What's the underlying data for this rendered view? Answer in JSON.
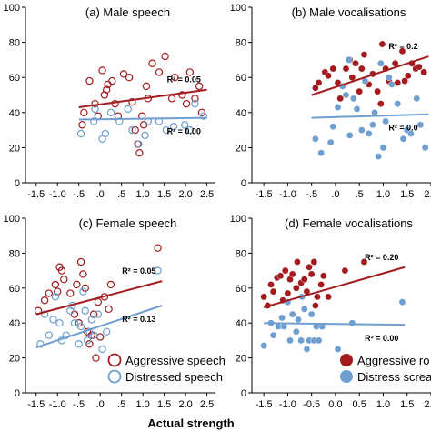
{
  "x_axis_title": "Actual strength",
  "colors": {
    "aggressive": "#a31b1e",
    "distressed": "#6f9fd0",
    "axis": "#000000"
  },
  "chart_data": [
    {
      "type": "scatter",
      "title": "(a) Male speech",
      "marker": "hollow",
      "xlim": [
        -1.75,
        2.7
      ],
      "ylim": [
        0,
        100
      ],
      "xticks": [
        "-1.5",
        "-1.0",
        "-.5",
        ".0",
        ".5",
        "1.0",
        "1.5",
        "2.0",
        "2.5"
      ],
      "xtick_values": [
        -1.5,
        -1.0,
        -0.5,
        0,
        0.5,
        1.0,
        1.5,
        2.0,
        2.5
      ],
      "yticks": [
        "0",
        "20",
        "40",
        "60",
        "80",
        "100"
      ],
      "ytick_values": [
        0,
        20,
        40,
        60,
        80,
        100
      ],
      "series": [
        {
          "color": "#a31b1e",
          "points": [
            [
              -0.42,
              33
            ],
            [
              -0.38,
              40
            ],
            [
              -0.25,
              58
            ],
            [
              -0.12,
              45
            ],
            [
              -0.05,
              38
            ],
            [
              0.05,
              64
            ],
            [
              0.1,
              50
            ],
            [
              0.15,
              53
            ],
            [
              0.18,
              56
            ],
            [
              0.28,
              58
            ],
            [
              0.35,
              45
            ],
            [
              0.42,
              38
            ],
            [
              0.55,
              62
            ],
            [
              0.68,
              60
            ],
            [
              0.75,
              46
            ],
            [
              0.82,
              30
            ],
            [
              0.88,
              22
            ],
            [
              0.92,
              17
            ],
            [
              0.98,
              38
            ],
            [
              1.02,
              33
            ],
            [
              1.08,
              55
            ],
            [
              1.12,
              48
            ],
            [
              1.22,
              68
            ],
            [
              1.38,
              63
            ],
            [
              1.52,
              72
            ],
            [
              1.68,
              48
            ],
            [
              1.75,
              60
            ],
            [
              1.92,
              50
            ],
            [
              2.02,
              45
            ],
            [
              2.1,
              63
            ],
            [
              2.22,
              48
            ],
            [
              2.32,
              55
            ],
            [
              2.38,
              40
            ]
          ],
          "trend": [
            [
              -0.5,
              43
            ],
            [
              2.5,
              53
            ]
          ],
          "r2_label": "R² = 0.05"
        },
        {
          "color": "#6f9fd0",
          "points": [
            [
              -0.45,
              28
            ],
            [
              -0.15,
              35
            ],
            [
              -0.12,
              42
            ],
            [
              0.05,
              25
            ],
            [
              0.12,
              28
            ],
            [
              0.25,
              40
            ],
            [
              0.45,
              35
            ],
            [
              0.65,
              42
            ],
            [
              0.75,
              30
            ],
            [
              0.9,
              22
            ],
            [
              1.05,
              27
            ],
            [
              1.12,
              35
            ],
            [
              1.38,
              35
            ],
            [
              1.55,
              30
            ],
            [
              1.72,
              32
            ],
            [
              1.98,
              33
            ],
            [
              2.1,
              30
            ],
            [
              2.22,
              45
            ],
            [
              2.42,
              38
            ]
          ],
          "trend": [
            [
              -0.5,
              36
            ],
            [
              2.5,
              37
            ]
          ],
          "r2_label": "R² = 0.00"
        }
      ]
    },
    {
      "type": "scatter",
      "title": "(b) Male vocalisations",
      "marker": "filled",
      "xlim": [
        -1.75,
        2.0
      ],
      "ylim": [
        0,
        100
      ],
      "xticks": [
        "-1.5",
        "-1.0",
        "-.5",
        ".0",
        ".5",
        "1.0",
        "1.5",
        "2.0"
      ],
      "xtick_values": [
        -1.5,
        -1.0,
        -0.5,
        0,
        0.5,
        1.0,
        1.5,
        2.0
      ],
      "yticks": [
        "0",
        "20",
        "40",
        "60",
        "80",
        "100"
      ],
      "ytick_values": [
        0,
        20,
        40,
        60,
        80,
        100
      ],
      "series": [
        {
          "color": "#a31b1e",
          "points": [
            [
              -0.42,
              54
            ],
            [
              -0.35,
              57
            ],
            [
              -0.22,
              63
            ],
            [
              -0.15,
              61
            ],
            [
              -0.05,
              65
            ],
            [
              0.05,
              57
            ],
            [
              0.1,
              48
            ],
            [
              0.15,
              55
            ],
            [
              0.22,
              65
            ],
            [
              0.3,
              70
            ],
            [
              0.35,
              60
            ],
            [
              0.42,
              68
            ],
            [
              0.5,
              52
            ],
            [
              0.55,
              65
            ],
            [
              0.6,
              73
            ],
            [
              0.7,
              56
            ],
            [
              0.78,
              62
            ],
            [
              0.88,
              52
            ],
            [
              0.95,
              45
            ],
            [
              0.98,
              79
            ],
            [
              1.05,
              65
            ],
            [
              1.12,
              58
            ],
            [
              1.25,
              68
            ],
            [
              1.3,
              57
            ],
            [
              1.4,
              75
            ],
            [
              1.45,
              58
            ],
            [
              1.52,
              61
            ],
            [
              1.6,
              68
            ],
            [
              1.68,
              65
            ],
            [
              1.75,
              66
            ],
            [
              1.85,
              63
            ]
          ],
          "trend": [
            [
              -0.5,
              50
            ],
            [
              1.95,
              72
            ]
          ],
          "r2_label": "R² = 0.2"
        },
        {
          "color": "#6f9fd0",
          "points": [
            [
              -0.42,
              25
            ],
            [
              -0.3,
              17
            ],
            [
              -0.1,
              23
            ],
            [
              -0.05,
              32
            ],
            [
              0.05,
              43
            ],
            [
              0.15,
              55
            ],
            [
              0.22,
              50
            ],
            [
              0.28,
              70
            ],
            [
              0.3,
              27
            ],
            [
              0.38,
              48
            ],
            [
              0.45,
              42
            ],
            [
              0.55,
              30
            ],
            [
              0.62,
              58
            ],
            [
              0.7,
              28
            ],
            [
              0.78,
              33
            ],
            [
              0.82,
              40
            ],
            [
              0.9,
              15
            ],
            [
              0.95,
              68
            ],
            [
              1.0,
              20
            ],
            [
              1.05,
              35
            ],
            [
              1.12,
              60
            ],
            [
              1.18,
              56
            ],
            [
              1.3,
              45
            ],
            [
              1.42,
              25
            ],
            [
              1.5,
              30
            ],
            [
              1.58,
              28
            ],
            [
              1.7,
              48
            ],
            [
              1.78,
              33
            ],
            [
              1.88,
              20
            ]
          ],
          "trend": [
            [
              -0.5,
              37
            ],
            [
              1.95,
              39
            ]
          ],
          "r2_label": "R² = 0.0"
        }
      ]
    },
    {
      "type": "scatter",
      "title": "(c) Female speech",
      "marker": "hollow",
      "xlim": [
        -1.75,
        2.7
      ],
      "ylim": [
        0,
        100
      ],
      "xticks": [
        "-1.5",
        "-1.0",
        "-.5",
        ".0",
        ".5",
        "1.0",
        "1.5",
        "2.0",
        "2.5"
      ],
      "xtick_values": [
        -1.5,
        -1.0,
        -0.5,
        0,
        0.5,
        1.0,
        1.5,
        2.0,
        2.5
      ],
      "yticks": [
        "0",
        "20",
        "40",
        "60",
        "80",
        "100"
      ],
      "ytick_values": [
        0,
        20,
        40,
        60,
        80,
        100
      ],
      "legend": [
        "Aggressive speech",
        "Distressed speech"
      ],
      "series": [
        {
          "color": "#a31b1e",
          "points": [
            [
              -1.45,
              47
            ],
            [
              -1.3,
              53
            ],
            [
              -1.2,
              57
            ],
            [
              -1.05,
              62
            ],
            [
              -1.0,
              58
            ],
            [
              -0.95,
              72
            ],
            [
              -0.9,
              70
            ],
            [
              -0.85,
              65
            ],
            [
              -0.7,
              57
            ],
            [
              -0.6,
              45
            ],
            [
              -0.55,
              62
            ],
            [
              -0.5,
              40
            ],
            [
              -0.45,
              75
            ],
            [
              -0.4,
              68
            ],
            [
              -0.35,
              60
            ],
            [
              -0.3,
              35
            ],
            [
              -0.25,
              28
            ],
            [
              -0.2,
              33
            ],
            [
              -0.15,
              45
            ],
            [
              -0.1,
              20
            ],
            [
              -0.05,
              52
            ],
            [
              0.0,
              32
            ],
            [
              0.1,
              55
            ],
            [
              0.2,
              48
            ],
            [
              0.25,
              62
            ],
            [
              1.35,
              83
            ]
          ],
          "trend": [
            [
              -1.5,
              45
            ],
            [
              1.45,
              64
            ]
          ],
          "r2_label": "R² = 0.05"
        },
        {
          "color": "#6f9fd0",
          "points": [
            [
              -1.4,
              28
            ],
            [
              -1.3,
              45
            ],
            [
              -1.2,
              33
            ],
            [
              -1.1,
              42
            ],
            [
              -1.05,
              55
            ],
            [
              -0.95,
              40
            ],
            [
              -0.9,
              30
            ],
            [
              -0.8,
              33
            ],
            [
              -0.7,
              47
            ],
            [
              -0.65,
              50
            ],
            [
              -0.6,
              40
            ],
            [
              -0.5,
              28
            ],
            [
              -0.45,
              38
            ],
            [
              -0.4,
              58
            ],
            [
              -0.35,
              47
            ],
            [
              -0.3,
              30
            ],
            [
              -0.25,
              35
            ],
            [
              -0.2,
              42
            ],
            [
              -0.15,
              33
            ],
            [
              -0.05,
              45
            ],
            [
              0.05,
              25
            ],
            [
              0.15,
              35
            ],
            [
              1.35,
              70
            ]
          ],
          "trend": [
            [
              -1.5,
              26
            ],
            [
              1.45,
              50
            ]
          ],
          "r2_label": "R² = 0.13"
        }
      ]
    },
    {
      "type": "scatter",
      "title": "(d) Female vocalisations",
      "marker": "filled",
      "xlim": [
        -1.75,
        2.0
      ],
      "ylim": [
        0,
        100
      ],
      "xticks": [
        "-1.5",
        "-1.0",
        "-0.5",
        "0.0",
        "0.5",
        "1.0",
        "1.5",
        "2.0"
      ],
      "xtick_values": [
        -1.5,
        -1.0,
        -0.5,
        0,
        0.5,
        1.0,
        1.5,
        2.0
      ],
      "yticks": [
        "0",
        "20",
        "40",
        "60",
        "80",
        "100"
      ],
      "ytick_values": [
        0,
        20,
        40,
        60,
        80,
        100
      ],
      "legend": [
        "Aggressive ro",
        "Distress screa"
      ],
      "series": [
        {
          "color": "#a31b1e",
          "points": [
            [
              -1.5,
              55
            ],
            [
              -1.42,
              50
            ],
            [
              -1.35,
              62
            ],
            [
              -1.3,
              58
            ],
            [
              -1.22,
              66
            ],
            [
              -1.15,
              67
            ],
            [
              -1.1,
              53
            ],
            [
              -1.05,
              70
            ],
            [
              -1.0,
              57
            ],
            [
              -0.95,
              65
            ],
            [
              -0.9,
              68
            ],
            [
              -0.82,
              60
            ],
            [
              -0.8,
              75
            ],
            [
              -0.72,
              63
            ],
            [
              -0.65,
              65
            ],
            [
              -0.6,
              58
            ],
            [
              -0.55,
              72
            ],
            [
              -0.5,
              68
            ],
            [
              -0.45,
              75
            ],
            [
              -0.42,
              50
            ],
            [
              -0.38,
              55
            ],
            [
              -0.3,
              62
            ],
            [
              -0.25,
              67
            ],
            [
              -0.15,
              55
            ],
            [
              0.2,
              70
            ],
            [
              0.6,
              75
            ]
          ],
          "trend": [
            [
              -1.5,
              49
            ],
            [
              1.45,
              72
            ]
          ],
          "r2_label": "R² = 0.20"
        },
        {
          "color": "#6f9fd0",
          "points": [
            [
              -1.5,
              27
            ],
            [
              -1.35,
              40
            ],
            [
              -1.3,
              33
            ],
            [
              -1.2,
              38
            ],
            [
              -1.12,
              43
            ],
            [
              -1.08,
              38
            ],
            [
              -1.0,
              52
            ],
            [
              -0.95,
              30
            ],
            [
              -0.9,
              45
            ],
            [
              -0.82,
              35
            ],
            [
              -0.78,
              42
            ],
            [
              -0.72,
              30
            ],
            [
              -0.7,
              55
            ],
            [
              -0.65,
              48
            ],
            [
              -0.6,
              25
            ],
            [
              -0.55,
              30
            ],
            [
              -0.5,
              45
            ],
            [
              -0.45,
              30
            ],
            [
              -0.4,
              38
            ],
            [
              -0.35,
              30
            ],
            [
              -0.28,
              38
            ],
            [
              0.05,
              25
            ],
            [
              0.35,
              40
            ],
            [
              1.4,
              52
            ]
          ],
          "trend": [
            [
              -1.5,
              40
            ],
            [
              1.45,
              39
            ]
          ],
          "r2_label": "R² = 0.00"
        }
      ]
    }
  ]
}
